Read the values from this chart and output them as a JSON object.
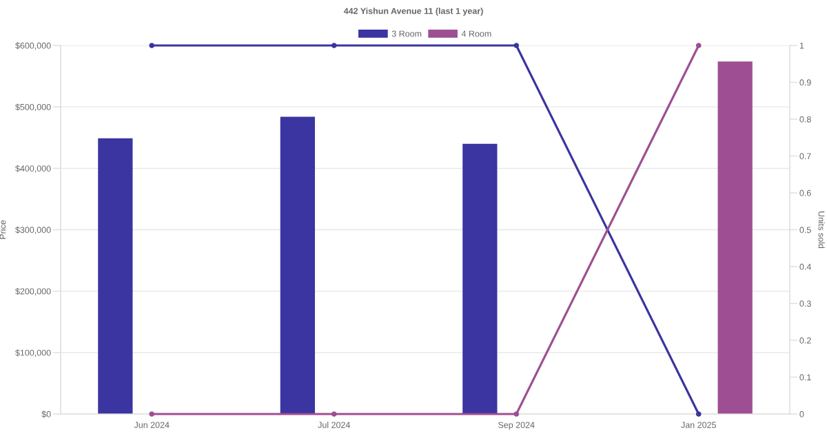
{
  "chart_data": {
    "type": "bar",
    "title": "442 Yishun Avenue 11 (last 1 year)",
    "categories": [
      "Jun 2024",
      "Jul 2024",
      "Sep 2024",
      "Jan 2025"
    ],
    "series": [
      {
        "name": "3 Room",
        "color": "#3a35a0",
        "values": [
          449000,
          484000,
          440000,
          null
        ]
      },
      {
        "name": "4 Room",
        "color": "#9e4f93",
        "values": [
          null,
          null,
          null,
          574000
        ]
      },
      {
        "type": "line",
        "axis": "y2",
        "color": "#3a35a0",
        "values": [
          1,
          1,
          1,
          0
        ]
      },
      {
        "type": "line",
        "axis": "y2",
        "color": "#9e4f93",
        "values": [
          0,
          0,
          0,
          1
        ]
      }
    ],
    "ylabel": "Price",
    "y2label": "Units sold",
    "ylim": [
      0,
      600000
    ],
    "yticks": [
      {
        "value": 0,
        "label": "$0"
      },
      {
        "value": 100000,
        "label": "$100,000"
      },
      {
        "value": 200000,
        "label": "$200,000"
      },
      {
        "value": 300000,
        "label": "$300,000"
      },
      {
        "value": 400000,
        "label": "$400,000"
      },
      {
        "value": 500000,
        "label": "$500,000"
      },
      {
        "value": 600000,
        "label": "$600,000"
      }
    ],
    "y2lim": [
      0,
      1
    ],
    "y2ticks": [
      0,
      0.1,
      0.2,
      0.3,
      0.4,
      0.5,
      0.6,
      0.7,
      0.8,
      0.9,
      1
    ],
    "grid": "y",
    "legend": "top",
    "marker": "circle",
    "line_style": "solid"
  }
}
